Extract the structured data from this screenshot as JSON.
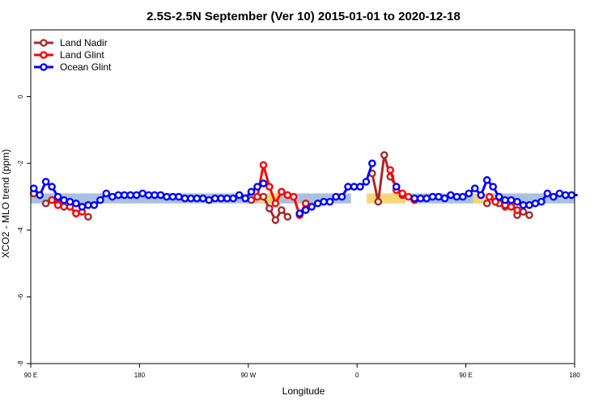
{
  "chart_data": {
    "type": "line",
    "title": "2.5S-2.5N September (Ver 10)   2015-01-01 to 2020-12-18",
    "xlabel": "Longitude",
    "ylabel": "XCO2 - MLO trend (ppm)",
    "xlim": [
      90,
      540
    ],
    "ylim": [
      -8,
      2
    ],
    "x_ticks": [
      {
        "value": 90,
        "label": "90 E"
      },
      {
        "value": 180,
        "label": "180"
      },
      {
        "value": 270,
        "label": "90 W"
      },
      {
        "value": 360,
        "label": "0"
      },
      {
        "value": 450,
        "label": "90 E"
      },
      {
        "value": 540,
        "label": "180"
      }
    ],
    "y_ticks": [
      {
        "value": 0,
        "label": "0"
      },
      {
        "value": -2,
        "label": "-2"
      },
      {
        "value": -4,
        "label": "-4"
      },
      {
        "value": -6,
        "label": "-6"
      },
      {
        "value": -8,
        "label": "-8"
      }
    ],
    "legend_position": "top-left",
    "reference_bands": [
      {
        "color": "#a9c1e0",
        "segments": [
          [
            90,
            355
          ],
          [
            405,
            540
          ]
        ],
        "y_range": [
          -3.2,
          -2.9
        ]
      },
      {
        "color": "#f9d576",
        "segments": [
          [
            278,
            296
          ],
          [
            368,
            400
          ],
          [
            456,
            470
          ]
        ],
        "y_range": [
          -3.2,
          -2.9
        ]
      }
    ],
    "series": [
      {
        "name": "Land Nadir",
        "color": "#a52a2a",
        "points": [
          [
            92.5,
            -2.9
          ],
          [
            102.5,
            -3.2
          ],
          [
            112.5,
            -3.2
          ],
          [
            117.5,
            -3.3
          ],
          [
            127.5,
            -3.5
          ],
          [
            137.5,
            -3.6
          ],
          [
            272.5,
            -3.1
          ],
          [
            282.5,
            -3.0
          ],
          [
            287.5,
            -3.35
          ],
          [
            292.5,
            -3.7
          ],
          [
            297.5,
            -3.4
          ],
          [
            302.5,
            -3.6
          ],
          [
            372.5,
            -2.3
          ],
          [
            377.5,
            -3.15
          ],
          [
            382.5,
            -1.75
          ],
          [
            387.5,
            -2.4
          ],
          [
            392.5,
            -2.7
          ],
          [
            397.5,
            -2.95
          ],
          [
            407.5,
            -3.1
          ],
          [
            467.5,
            -3.2
          ],
          [
            477.5,
            -3.2
          ],
          [
            482.5,
            -3.3
          ],
          [
            492.5,
            -3.55
          ],
          [
            497.5,
            -3.45
          ],
          [
            502.5,
            -3.55
          ]
        ]
      },
      {
        "name": "Land Glint",
        "color": "#ff0000",
        "points": [
          [
            107.5,
            -3.1
          ],
          [
            112.5,
            -3.25
          ],
          [
            122.5,
            -3.3
          ],
          [
            127.5,
            -3.5
          ],
          [
            132.5,
            -3.45
          ],
          [
            277.5,
            -3.0
          ],
          [
            282.5,
            -2.05
          ],
          [
            287.5,
            -2.7
          ],
          [
            292.5,
            -3.2
          ],
          [
            297.5,
            -2.85
          ],
          [
            302.5,
            -2.95
          ],
          [
            307.5,
            -3.0
          ],
          [
            312.5,
            -3.55
          ],
          [
            317.5,
            -3.2
          ],
          [
            387.5,
            -2.2
          ],
          [
            392.5,
            -2.8
          ],
          [
            397.5,
            -2.9
          ],
          [
            402.5,
            -3.0
          ],
          [
            407.5,
            -3.1
          ],
          [
            469.5,
            -3.0
          ],
          [
            474.5,
            -3.15
          ],
          [
            482.5,
            -3.25
          ],
          [
            487.5,
            -3.3
          ],
          [
            492.5,
            -3.4
          ]
        ]
      },
      {
        "name": "Ocean Glint",
        "color": "#0000ff",
        "points": [
          [
            92.5,
            -2.75
          ],
          [
            97.5,
            -2.95
          ],
          [
            102.5,
            -2.55
          ],
          [
            107.5,
            -2.7
          ],
          [
            112.5,
            -3.0
          ],
          [
            117.5,
            -3.1
          ],
          [
            122.5,
            -3.15
          ],
          [
            127.5,
            -3.2
          ],
          [
            132.5,
            -3.3
          ],
          [
            137.5,
            -3.25
          ],
          [
            142.5,
            -3.25
          ],
          [
            147.5,
            -3.1
          ],
          [
            152.5,
            -2.9
          ],
          [
            157.5,
            -3.0
          ],
          [
            162.5,
            -2.95
          ],
          [
            167.5,
            -2.95
          ],
          [
            172.5,
            -2.95
          ],
          [
            177.5,
            -2.95
          ],
          [
            182.5,
            -2.9
          ],
          [
            187.5,
            -2.95
          ],
          [
            192.5,
            -2.95
          ],
          [
            197.5,
            -2.95
          ],
          [
            202.5,
            -3.0
          ],
          [
            207.5,
            -3.0
          ],
          [
            212.5,
            -3.0
          ],
          [
            217.5,
            -3.05
          ],
          [
            222.5,
            -3.05
          ],
          [
            227.5,
            -3.05
          ],
          [
            232.5,
            -3.05
          ],
          [
            237.5,
            -3.1
          ],
          [
            242.5,
            -3.05
          ],
          [
            247.5,
            -3.05
          ],
          [
            252.5,
            -3.05
          ],
          [
            257.5,
            -3.05
          ],
          [
            262.5,
            -2.95
          ],
          [
            267.5,
            -3.05
          ],
          [
            272.5,
            -2.85
          ],
          [
            277.5,
            -2.7
          ],
          [
            282.5,
            -2.6
          ],
          [
            312.5,
            -3.5
          ],
          [
            317.5,
            -3.4
          ],
          [
            322.5,
            -3.3
          ],
          [
            327.5,
            -3.2
          ],
          [
            332.5,
            -3.15
          ],
          [
            337.5,
            -3.15
          ],
          [
            342.5,
            -3.0
          ],
          [
            347.5,
            -3.0
          ],
          [
            352.5,
            -2.7
          ],
          [
            357.5,
            -2.7
          ],
          [
            362.5,
            -2.7
          ],
          [
            367.5,
            -2.55
          ],
          [
            372.5,
            -2.0
          ],
          [
            392.5,
            -2.7
          ],
          [
            407.5,
            -3.05
          ],
          [
            412.5,
            -3.05
          ],
          [
            417.5,
            -3.05
          ],
          [
            422.5,
            -3.0
          ],
          [
            427.5,
            -3.0
          ],
          [
            432.5,
            -3.05
          ],
          [
            437.5,
            -2.95
          ],
          [
            442.5,
            -3.0
          ],
          [
            447.5,
            -3.0
          ],
          [
            452.5,
            -2.9
          ],
          [
            457.5,
            -2.75
          ],
          [
            462.5,
            -2.95
          ],
          [
            467.5,
            -2.5
          ],
          [
            472.5,
            -2.7
          ],
          [
            477.5,
            -3.0
          ],
          [
            482.5,
            -3.1
          ],
          [
            487.5,
            -3.1
          ],
          [
            492.5,
            -3.15
          ],
          [
            497.5,
            -3.25
          ],
          [
            502.5,
            -3.25
          ],
          [
            507.5,
            -3.2
          ],
          [
            512.5,
            -3.15
          ],
          [
            517.5,
            -2.9
          ],
          [
            522.5,
            -3.0
          ],
          [
            527.5,
            -2.9
          ],
          [
            532.5,
            -2.95
          ],
          [
            537.5,
            -2.95
          ],
          [
            542.5,
            -2.95
          ]
        ]
      }
    ]
  }
}
